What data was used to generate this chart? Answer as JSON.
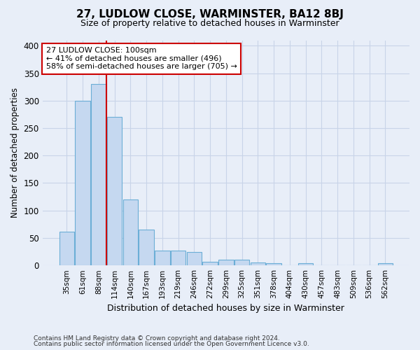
{
  "title": "27, LUDLOW CLOSE, WARMINSTER, BA12 8BJ",
  "subtitle": "Size of property relative to detached houses in Warminster",
  "xlabel": "Distribution of detached houses by size in Warminster",
  "ylabel": "Number of detached properties",
  "footnote1": "Contains HM Land Registry data © Crown copyright and database right 2024.",
  "footnote2": "Contains public sector information licensed under the Open Government Licence v3.0.",
  "bin_labels": [
    "35sqm",
    "61sqm",
    "88sqm",
    "114sqm",
    "140sqm",
    "167sqm",
    "193sqm",
    "219sqm",
    "246sqm",
    "272sqm",
    "299sqm",
    "325sqm",
    "351sqm",
    "378sqm",
    "404sqm",
    "430sqm",
    "457sqm",
    "483sqm",
    "509sqm",
    "536sqm",
    "562sqm"
  ],
  "bar_heights": [
    62,
    300,
    330,
    270,
    120,
    65,
    27,
    27,
    25,
    7,
    11,
    11,
    5,
    4,
    0,
    4,
    0,
    0,
    0,
    0,
    4
  ],
  "bar_color": "#c5d8f0",
  "bar_edge_color": "#6baed6",
  "bar_edge_width": 0.8,
  "grid_color": "#c8d4e8",
  "background_color": "#e8eef8",
  "ylim": [
    0,
    410
  ],
  "yticks": [
    0,
    50,
    100,
    150,
    200,
    250,
    300,
    350,
    400
  ],
  "red_line_x": 2.5,
  "red_line_color": "#cc0000",
  "annotation_text": "27 LUDLOW CLOSE: 100sqm\n← 41% of detached houses are smaller (496)\n58% of semi-detached houses are larger (705) →",
  "annotation_box_color": "#ffffff",
  "annotation_box_edge": "#cc0000"
}
